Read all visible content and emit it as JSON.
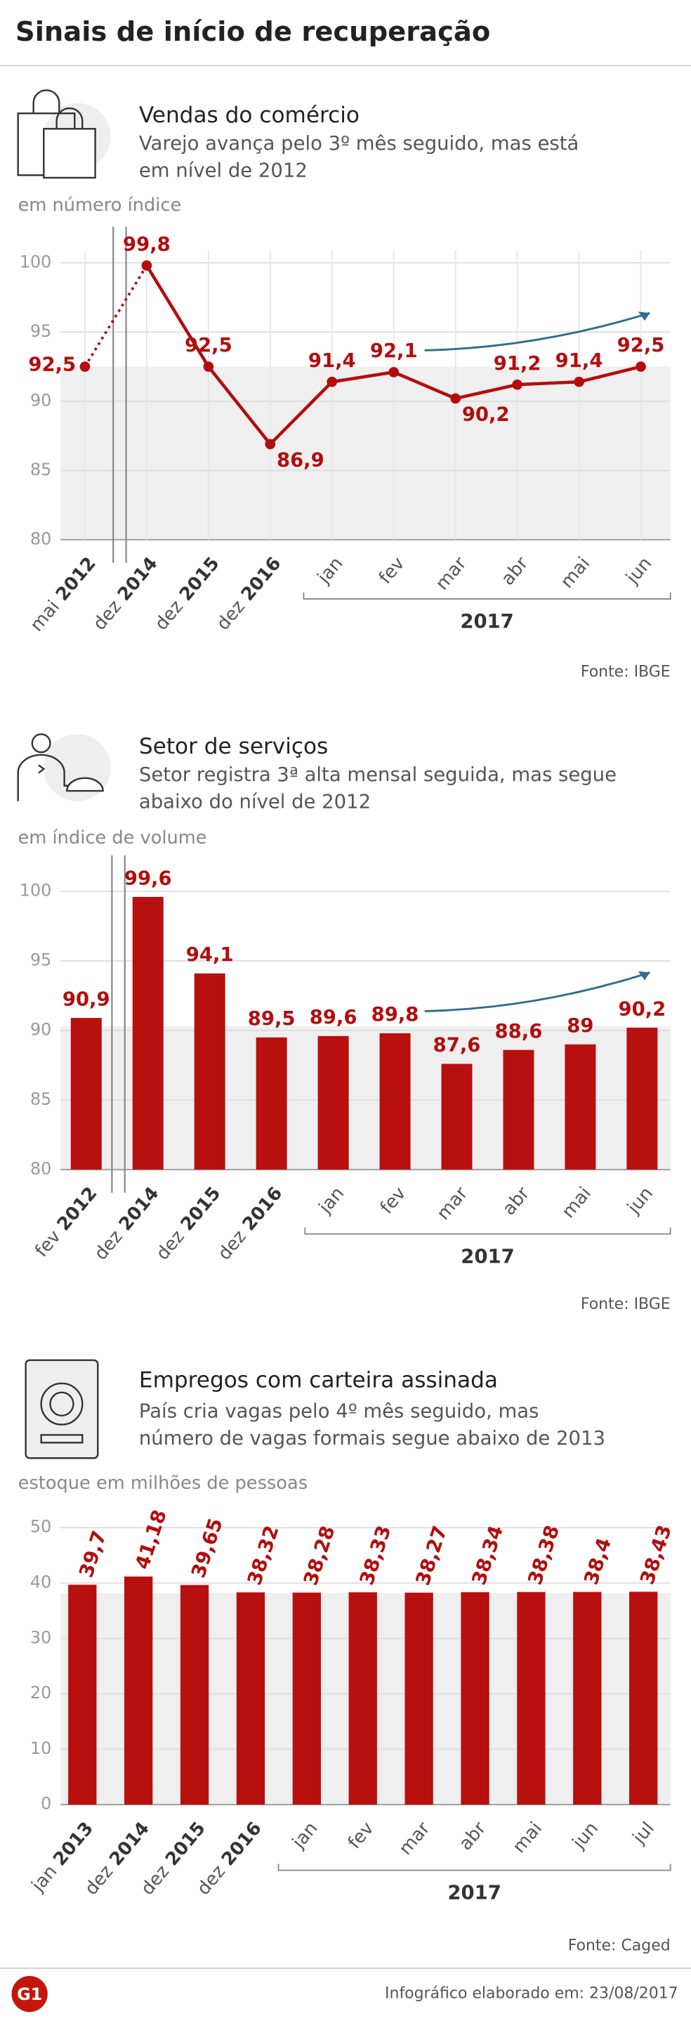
{
  "title": "Sinais de início de recuperação",
  "chart_data": [
    {
      "type": "line",
      "title": "Vendas do comércio",
      "subtitle": [
        "Varejo avança pelo 3º mês seguido, mas está",
        "em nível de 2012"
      ],
      "axis_label": "em número índice",
      "categories": [
        "mai 2012",
        "dez 2014",
        "dez 2015",
        "dez 2016",
        "jan",
        "fev",
        "mar",
        "abr",
        "mai",
        "jun"
      ],
      "group_label": "2017",
      "values": [
        92.5,
        99.8,
        92.5,
        86.9,
        91.4,
        92.1,
        90.2,
        91.2,
        91.4,
        92.5
      ],
      "value_labels": [
        "92,5",
        "99,8",
        "92,5",
        "86,9",
        "91,4",
        "92,1",
        "90,2",
        "91,2",
        "91,4",
        "92,5"
      ],
      "color": "#b30d0d",
      "ylim": [
        80,
        100
      ],
      "yticks": [
        80,
        85,
        90,
        95,
        100
      ],
      "reference_band": 92.5,
      "source": "Fonte: IBGE"
    },
    {
      "type": "bar",
      "title": "Setor de serviços",
      "subtitle": [
        "Setor registra 3ª alta mensal seguida, mas segue",
        "abaixo do nível de 2012"
      ],
      "axis_label": "em índice de volume",
      "categories": [
        "fev 2012",
        "dez 2014",
        "dez 2015",
        "dez 2016",
        "jan",
        "fev",
        "mar",
        "abr",
        "mai",
        "jun"
      ],
      "group_label": "2017",
      "values": [
        90.9,
        99.6,
        94.1,
        89.5,
        89.6,
        89.8,
        87.6,
        88.6,
        89,
        90.2
      ],
      "value_labels": [
        "90,9",
        "99,6",
        "94,1",
        "89,5",
        "89,6",
        "89,8",
        "87,6",
        "88,6",
        "89",
        "90,2"
      ],
      "color": "#b80f0f",
      "ylim": [
        80,
        100
      ],
      "yticks": [
        80,
        85,
        90,
        95,
        100
      ],
      "reference_band": 90.3,
      "source": "Fonte: IBGE"
    },
    {
      "type": "bar",
      "title": "Empregos com carteira assinada",
      "subtitle": [
        "País cria vagas pelo 4º mês seguido, mas",
        "número de vagas formais segue abaixo de 2013"
      ],
      "axis_label": "estoque em milhões de pessoas",
      "categories": [
        "jan 2013",
        "dez 2014",
        "dez 2015",
        "dez 2016",
        "jan",
        "fev",
        "mar",
        "abr",
        "mai",
        "jun",
        "jul"
      ],
      "group_label": "2017",
      "values": [
        39.7,
        41.18,
        39.65,
        38.32,
        38.28,
        38.33,
        38.27,
        38.34,
        38.38,
        38.4,
        38.43
      ],
      "value_labels": [
        "39,7",
        "41,18",
        "39,65",
        "38,32",
        "38,28",
        "38,33",
        "38,27",
        "38,34",
        "38,38",
        "38,4",
        "38,43"
      ],
      "color": "#b80f0f",
      "ylim": [
        0,
        50
      ],
      "yticks": [
        0,
        10,
        20,
        30,
        40,
        50
      ],
      "reference_band": 38.2,
      "source": "Fonte: Caged"
    }
  ],
  "logo": "G1",
  "footer": "Infográfico elaborado em: 23/08/2017"
}
